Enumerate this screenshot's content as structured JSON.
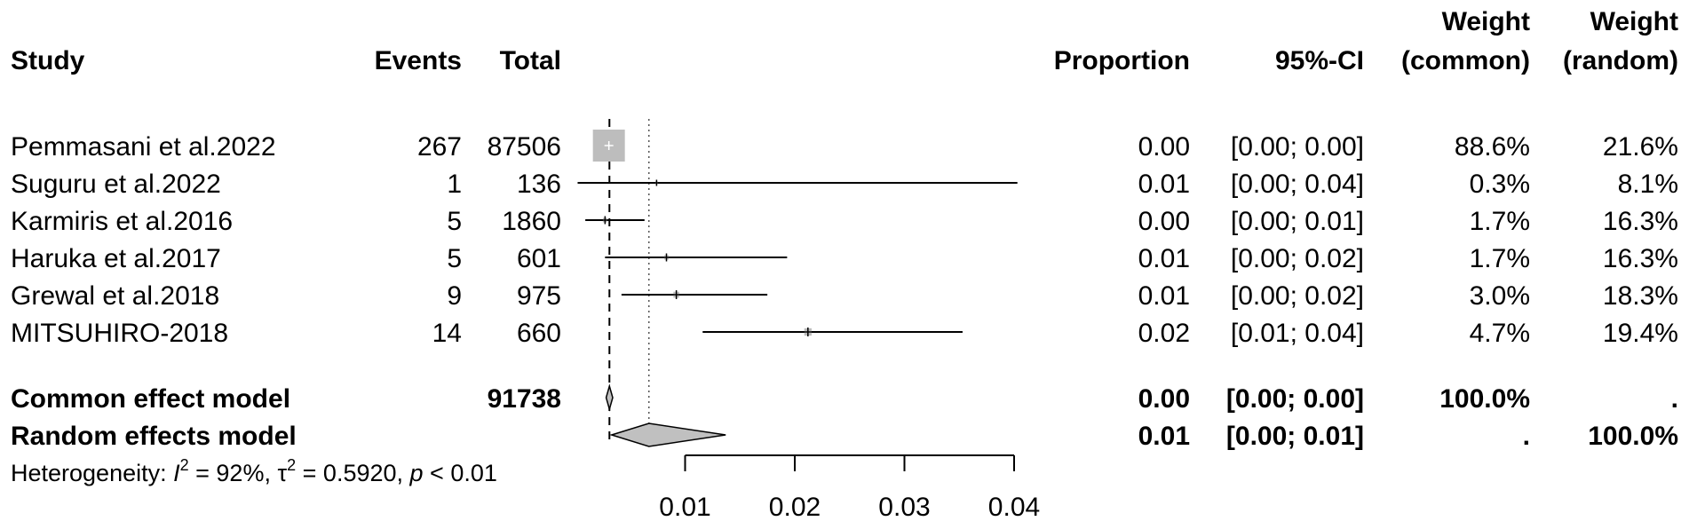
{
  "chart_data": {
    "type": "forest",
    "headers": {
      "study": "Study",
      "events": "Events",
      "total": "Total",
      "proportion": "Proportion",
      "ci": "95%-CI",
      "weight_common_1": "Weight",
      "weight_common_2": "(common)",
      "weight_random_1": "Weight",
      "weight_random_2": "(random)"
    },
    "studies": [
      {
        "study": "Pemmasani  et al.2022",
        "events": "267",
        "total": "87506",
        "proportion": "0.00",
        "ci": "[0.00; 0.00]",
        "w_common": "88.6%",
        "w_random": "21.6%",
        "est": 0.00305,
        "lower": 0.0027,
        "upper": 0.0034
      },
      {
        "study": "Suguru et al.2022",
        "events": "1",
        "total": "136",
        "proportion": "0.01",
        "ci": "[0.00; 0.04]",
        "w_common": "0.3%",
        "w_random": "8.1%",
        "est": 0.0074,
        "lower": 0.0002,
        "upper": 0.0403
      },
      {
        "study": "Karmiris et al.2016",
        "events": "5",
        "total": "1860",
        "proportion": "0.00",
        "ci": "[0.00; 0.01]",
        "w_common": "1.7%",
        "w_random": "16.3%",
        "est": 0.0027,
        "lower": 0.0009,
        "upper": 0.0063
      },
      {
        "study": "Haruka  et al.2017",
        "events": "5",
        "total": "601",
        "proportion": "0.01",
        "ci": "[0.00; 0.02]",
        "w_common": "1.7%",
        "w_random": "16.3%",
        "est": 0.0083,
        "lower": 0.0027,
        "upper": 0.0193
      },
      {
        "study": "Grewal et al.2018",
        "events": "9",
        "total": "975",
        "proportion": "0.01",
        "ci": "[0.00; 0.02]",
        "w_common": "3.0%",
        "w_random": "18.3%",
        "est": 0.0092,
        "lower": 0.0042,
        "upper": 0.0175
      },
      {
        "study": "MITSUHIRO-2018",
        "events": "14",
        "total": "660",
        "proportion": "0.02",
        "ci": "[0.01; 0.04]",
        "w_common": "4.7%",
        "w_random": "19.4%",
        "est": 0.0212,
        "lower": 0.0116,
        "upper": 0.0353
      }
    ],
    "common": {
      "label": "Common effect model",
      "total": "91738",
      "proportion": "0.00",
      "ci": "[0.00; 0.00]",
      "w_common": "100.0%",
      "w_random": ".",
      "est": 0.0031,
      "lower": 0.0028,
      "upper": 0.0034
    },
    "random": {
      "label": "Random effects model",
      "proportion": "0.01",
      "ci": "[0.00; 0.01]",
      "w_common": ".",
      "w_random": "100.0%",
      "est": 0.0067,
      "lower": 0.0033,
      "upper": 0.0137
    },
    "heterogeneity": {
      "prefix": "Heterogeneity: ",
      "i2_sym": "I",
      "i2_sup": "2",
      "i2_val": " = 92%, ",
      "tau_sym": "τ",
      "tau_sup": "2",
      "tau_val": " = 0.5920, ",
      "p_sym": "p",
      "p_val": " < 0.01"
    },
    "x_axis": {
      "ticks": [
        0.01,
        0.02,
        0.03,
        0.04
      ],
      "tick_labels": [
        "0.01",
        "0.02",
        "0.03",
        "0.04"
      ],
      "scale": "linear"
    },
    "reference_lines": {
      "common_est": 0.0031,
      "random_est": 0.0067
    }
  }
}
